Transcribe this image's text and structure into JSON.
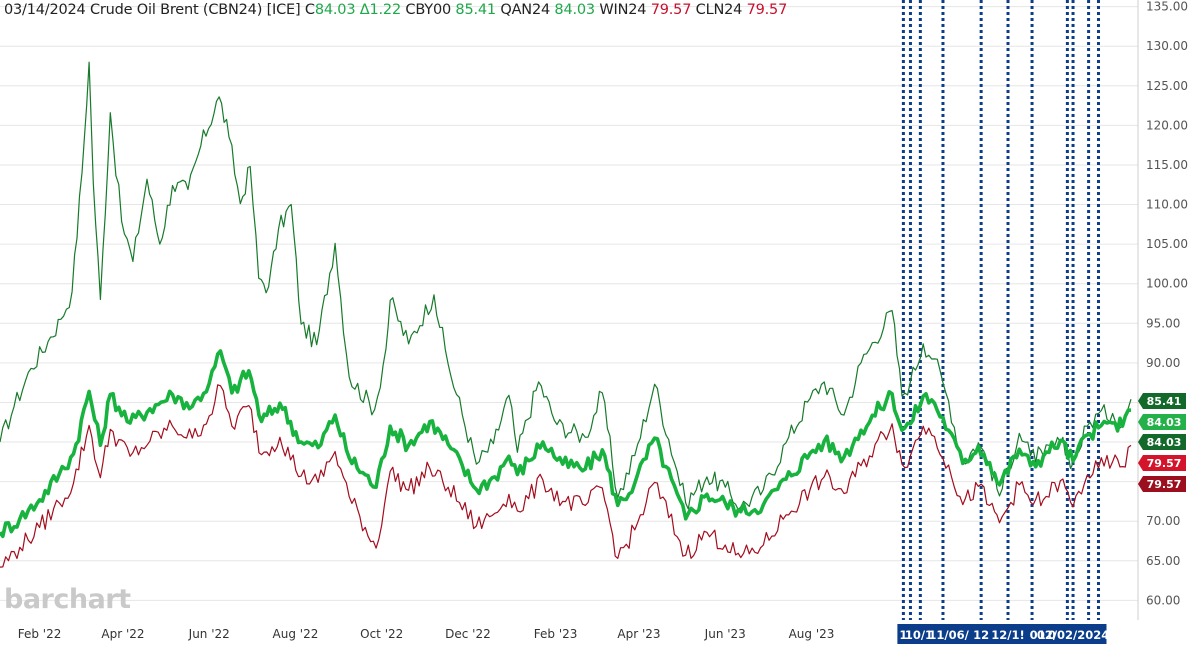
{
  "header": {
    "date": "03/14/2024",
    "name": "Crude Oil Brent (CBN24) [ICE]",
    "prefix": "C",
    "last": "84.03",
    "change": "Δ1.22",
    "items": [
      {
        "symbol": "CBY00",
        "value": "85.41",
        "tone": "pos"
      },
      {
        "symbol": "QAN24",
        "value": "84.03",
        "tone": "pos"
      },
      {
        "symbol": "WIN24",
        "value": "79.57",
        "tone": "neg"
      },
      {
        "symbol": "CLN24",
        "value": "79.57",
        "tone": "neg"
      }
    ]
  },
  "watermark": "barchart",
  "colors": {
    "thin_green": "#177a2b",
    "thick_green": "#18b23e",
    "red": "#a30d1d",
    "event_line": "#0b3d8a",
    "tag_lightgreen": "#24b14a",
    "tag_darkgreen": "#13692a",
    "tag_red": "#d3142b",
    "tag_darkred": "#9b0f1f",
    "grid": "#e6e6e6"
  },
  "chart_data": {
    "type": "line",
    "title": "",
    "xlabel": "",
    "ylabel": "",
    "ylim": [
      58,
      136
    ],
    "y_ticks": [
      "135.00",
      "130.00",
      "125.00",
      "120.00",
      "115.00",
      "110.00",
      "105.00",
      "100.00",
      "95.00",
      "90.00",
      "85.00",
      "80.00",
      "75.00",
      "70.00",
      "65.00",
      "60.00"
    ],
    "y_tick_values": [
      135,
      130,
      125,
      120,
      115,
      110,
      105,
      100,
      95,
      90,
      85,
      80,
      75,
      70,
      65,
      60
    ],
    "x_ticks": [
      "Feb '22",
      "Apr '22",
      "Jun '22",
      "Aug '22",
      "Oct '22",
      "Dec '22",
      "Feb '23",
      "Apr '23",
      "Jun '23",
      "Aug '23"
    ],
    "x_tick_dates": [
      "2022-02-01",
      "2022-04-01",
      "2022-06-01",
      "2022-08-01",
      "2022-10-01",
      "2022-12-01",
      "2023-02-01",
      "2023-04-01",
      "2023-06-01",
      "2023-08-01"
    ],
    "x_range": [
      "2022-01-04",
      "2024-03-14"
    ],
    "grid": "horizontal",
    "event_labels": [
      {
        "date": "2023-10-05",
        "text": "1"
      },
      {
        "date": "2023-10-16",
        "text": "10/1"
      },
      {
        "date": "2023-11-06",
        "text": "11/06/"
      },
      {
        "date": "2023-11-29",
        "text": "12"
      },
      {
        "date": "2023-12-18",
        "text": "12/1!"
      },
      {
        "date": "2024-01-08",
        "text": "01"
      },
      {
        "date": "2024-01-18",
        "text": "0"
      },
      {
        "date": "2024-02-02",
        "text": "02/02/2024"
      }
    ],
    "event_lines": [
      "2023-10-05",
      "2023-10-10",
      "2023-10-17",
      "2023-11-02",
      "2023-11-29",
      "2023-12-18",
      "2024-01-04",
      "2024-01-29",
      "2024-02-02",
      "2024-02-13",
      "2024-02-20"
    ],
    "price_tags": [
      {
        "value": 85.41,
        "label": "85.41",
        "color": "#13692a"
      },
      {
        "value": 84.03,
        "label": "84.03",
        "color": "#24b14a",
        "shift": 1
      },
      {
        "value": 84.03,
        "label": "84.03",
        "color": "#13692a",
        "shift": 2
      },
      {
        "value": 79.57,
        "label": "79.57",
        "color": "#d3142b",
        "shift": 3
      },
      {
        "value": 79.57,
        "label": "79.57",
        "color": "#9b0f1f",
        "shift": 4
      }
    ],
    "series": [
      {
        "name": "CBY00",
        "style": "thin",
        "color": "#177a2b",
        "points": [
          [
            "2022-01-04",
            80.0
          ],
          [
            "2022-01-14",
            84.5
          ],
          [
            "2022-01-26",
            89.3
          ],
          [
            "2022-02-07",
            92.7
          ],
          [
            "2022-02-16",
            95.5
          ],
          [
            "2022-02-24",
            99.0
          ],
          [
            "2022-03-03",
            114.0
          ],
          [
            "2022-03-08",
            127.98
          ],
          [
            "2022-03-11",
            112.7
          ],
          [
            "2022-03-16",
            98.0
          ],
          [
            "2022-03-23",
            121.6
          ],
          [
            "2022-03-31",
            107.9
          ],
          [
            "2022-04-08",
            102.8
          ],
          [
            "2022-04-18",
            113.2
          ],
          [
            "2022-04-27",
            105.0
          ],
          [
            "2022-05-06",
            112.4
          ],
          [
            "2022-05-17",
            111.9
          ],
          [
            "2022-05-26",
            117.4
          ],
          [
            "2022-06-08",
            123.6
          ],
          [
            "2022-06-15",
            118.5
          ],
          [
            "2022-06-23",
            110.1
          ],
          [
            "2022-06-30",
            114.8
          ],
          [
            "2022-07-06",
            100.7
          ],
          [
            "2022-07-13",
            99.6
          ],
          [
            "2022-07-20",
            106.9
          ],
          [
            "2022-07-29",
            110.0
          ],
          [
            "2022-08-05",
            94.9
          ],
          [
            "2022-08-16",
            92.3
          ],
          [
            "2022-08-29",
            105.1
          ],
          [
            "2022-09-08",
            88.2
          ],
          [
            "2022-09-26",
            84.1
          ],
          [
            "2022-10-04",
            91.8
          ],
          [
            "2022-10-07",
            97.9
          ],
          [
            "2022-10-20",
            92.4
          ],
          [
            "2022-11-07",
            98.6
          ],
          [
            "2022-11-17",
            89.8
          ],
          [
            "2022-12-07",
            77.2
          ],
          [
            "2022-12-19",
            79.8
          ],
          [
            "2022-12-30",
            85.9
          ],
          [
            "2023-01-05",
            78.7
          ],
          [
            "2023-01-20",
            87.6
          ],
          [
            "2023-02-02",
            82.2
          ],
          [
            "2023-02-22",
            80.6
          ],
          [
            "2023-03-06",
            86.2
          ],
          [
            "2023-03-17",
            72.97
          ],
          [
            "2023-03-29",
            78.3
          ],
          [
            "2023-04-12",
            87.3
          ],
          [
            "2023-05-04",
            72.3
          ],
          [
            "2023-05-19",
            75.6
          ],
          [
            "2023-06-01",
            74.3
          ],
          [
            "2023-06-12",
            71.8
          ],
          [
            "2023-06-28",
            74.0
          ],
          [
            "2023-07-14",
            79.9
          ],
          [
            "2023-07-31",
            85.5
          ],
          [
            "2023-08-10",
            87.6
          ],
          [
            "2023-08-24",
            83.4
          ],
          [
            "2023-09-05",
            90.0
          ],
          [
            "2023-09-27",
            96.6
          ],
          [
            "2023-10-04",
            85.8
          ],
          [
            "2023-10-10",
            87.7
          ],
          [
            "2023-10-19",
            92.4
          ],
          [
            "2023-10-27",
            90.5
          ],
          [
            "2023-11-06",
            85.2
          ],
          [
            "2023-11-16",
            77.4
          ],
          [
            "2023-11-27",
            79.9
          ],
          [
            "2023-12-05",
            77.2
          ],
          [
            "2023-12-12",
            73.2
          ],
          [
            "2023-12-26",
            81.1
          ],
          [
            "2024-01-03",
            78.3
          ],
          [
            "2024-01-12",
            78.3
          ],
          [
            "2024-01-24",
            80.0
          ],
          [
            "2024-02-02",
            77.3
          ],
          [
            "2024-02-12",
            82.0
          ],
          [
            "2024-02-20",
            83.6
          ],
          [
            "2024-03-01",
            83.6
          ],
          [
            "2024-03-08",
            82.1
          ],
          [
            "2024-03-14",
            85.41
          ]
        ]
      },
      {
        "name": "QAN24",
        "style": "thick",
        "color": "#18b23e",
        "points": [
          [
            "2022-01-04",
            68.6
          ],
          [
            "2022-01-18",
            70.3
          ],
          [
            "2022-02-01",
            72.7
          ],
          [
            "2022-02-15",
            76.0
          ],
          [
            "2022-02-25",
            78.5
          ],
          [
            "2022-03-08",
            86.4
          ],
          [
            "2022-03-16",
            79.6
          ],
          [
            "2022-03-23",
            86.0
          ],
          [
            "2022-04-06",
            82.4
          ],
          [
            "2022-04-20",
            84.2
          ],
          [
            "2022-05-06",
            86.0
          ],
          [
            "2022-05-20",
            84.5
          ],
          [
            "2022-06-01",
            87.4
          ],
          [
            "2022-06-09",
            91.5
          ],
          [
            "2022-06-17",
            86.2
          ],
          [
            "2022-06-29",
            89.0
          ],
          [
            "2022-07-08",
            82.6
          ],
          [
            "2022-07-21",
            84.9
          ],
          [
            "2022-08-05",
            80.0
          ],
          [
            "2022-08-17",
            79.3
          ],
          [
            "2022-08-29",
            83.4
          ],
          [
            "2022-09-08",
            78.0
          ],
          [
            "2022-09-27",
            74.3
          ],
          [
            "2022-10-07",
            82.0
          ],
          [
            "2022-10-20",
            79.6
          ],
          [
            "2022-11-04",
            82.6
          ],
          [
            "2022-11-17",
            79.7
          ],
          [
            "2022-12-07",
            74.0
          ],
          [
            "2022-12-20",
            75.6
          ],
          [
            "2022-12-30",
            78.2
          ],
          [
            "2023-01-05",
            75.9
          ],
          [
            "2023-01-23",
            80.0
          ],
          [
            "2023-02-06",
            77.2
          ],
          [
            "2023-02-22",
            76.6
          ],
          [
            "2023-03-06",
            79.0
          ],
          [
            "2023-03-17",
            72.0
          ],
          [
            "2023-03-29",
            74.8
          ],
          [
            "2023-04-12",
            80.5
          ],
          [
            "2023-05-04",
            70.3
          ],
          [
            "2023-05-19",
            73.4
          ],
          [
            "2023-06-01",
            72.3
          ],
          [
            "2023-06-12",
            71.2
          ],
          [
            "2023-06-28",
            72.1
          ],
          [
            "2023-07-14",
            75.3
          ],
          [
            "2023-07-31",
            78.6
          ],
          [
            "2023-08-10",
            80.1
          ],
          [
            "2023-08-24",
            78.1
          ],
          [
            "2023-09-05",
            81.5
          ],
          [
            "2023-09-27",
            86.1
          ],
          [
            "2023-10-04",
            81.5
          ],
          [
            "2023-10-10",
            82.3
          ],
          [
            "2023-10-19",
            85.8
          ],
          [
            "2023-10-27",
            84.9
          ],
          [
            "2023-11-06",
            81.5
          ],
          [
            "2023-11-16",
            77.3
          ],
          [
            "2023-11-27",
            79.5
          ],
          [
            "2023-12-05",
            77.4
          ],
          [
            "2023-12-12",
            74.6
          ],
          [
            "2023-12-26",
            79.1
          ],
          [
            "2024-01-03",
            77.0
          ],
          [
            "2024-01-12",
            78.2
          ],
          [
            "2024-01-24",
            80.2
          ],
          [
            "2024-02-02",
            77.6
          ],
          [
            "2024-02-12",
            80.9
          ],
          [
            "2024-02-20",
            81.8
          ],
          [
            "2024-03-01",
            82.4
          ],
          [
            "2024-03-08",
            82.0
          ],
          [
            "2024-03-14",
            84.03
          ]
        ]
      },
      {
        "name": "WIN24",
        "style": "thin",
        "color": "#a30d1d",
        "points": [
          [
            "2022-01-04",
            64.2
          ],
          [
            "2022-01-18",
            66.7
          ],
          [
            "2022-02-01",
            69.2
          ],
          [
            "2022-02-15",
            72.3
          ],
          [
            "2022-02-25",
            74.8
          ],
          [
            "2022-03-08",
            82.1
          ],
          [
            "2022-03-16",
            75.5
          ],
          [
            "2022-03-23",
            81.6
          ],
          [
            "2022-04-06",
            78.2
          ],
          [
            "2022-04-20",
            80.1
          ],
          [
            "2022-05-06",
            82.0
          ],
          [
            "2022-05-20",
            80.5
          ],
          [
            "2022-06-01",
            83.3
          ],
          [
            "2022-06-09",
            87.1
          ],
          [
            "2022-06-17",
            82.0
          ],
          [
            "2022-06-29",
            84.6
          ],
          [
            "2022-07-08",
            78.4
          ],
          [
            "2022-07-21",
            80.6
          ],
          [
            "2022-08-05",
            75.7
          ],
          [
            "2022-08-17",
            74.9
          ],
          [
            "2022-08-29",
            78.8
          ],
          [
            "2022-09-08",
            73.1
          ],
          [
            "2022-09-27",
            66.6
          ],
          [
            "2022-10-07",
            76.3
          ],
          [
            "2022-10-20",
            73.9
          ],
          [
            "2022-11-04",
            76.7
          ],
          [
            "2022-11-17",
            74.3
          ],
          [
            "2022-12-07",
            69.4
          ],
          [
            "2022-12-20",
            71.0
          ],
          [
            "2022-12-30",
            73.4
          ],
          [
            "2023-01-05",
            71.3
          ],
          [
            "2023-01-23",
            75.2
          ],
          [
            "2023-02-06",
            72.5
          ],
          [
            "2023-02-22",
            72.0
          ],
          [
            "2023-03-06",
            74.2
          ],
          [
            "2023-03-17",
            65.3
          ],
          [
            "2023-03-29",
            68.9
          ],
          [
            "2023-04-12",
            74.9
          ],
          [
            "2023-05-04",
            65.7
          ],
          [
            "2023-05-19",
            68.6
          ],
          [
            "2023-06-01",
            67.0
          ],
          [
            "2023-06-12",
            65.4
          ],
          [
            "2023-06-28",
            67.0
          ],
          [
            "2023-07-14",
            70.8
          ],
          [
            "2023-07-31",
            74.0
          ],
          [
            "2023-08-10",
            75.6
          ],
          [
            "2023-08-24",
            73.5
          ],
          [
            "2023-09-05",
            77.0
          ],
          [
            "2023-09-27",
            82.3
          ],
          [
            "2023-10-04",
            77.2
          ],
          [
            "2023-10-10",
            78.3
          ],
          [
            "2023-10-19",
            82.0
          ],
          [
            "2023-10-27",
            80.7
          ],
          [
            "2023-11-06",
            77.1
          ],
          [
            "2023-11-16",
            72.1
          ],
          [
            "2023-11-27",
            74.4
          ],
          [
            "2023-12-05",
            72.0
          ],
          [
            "2023-12-12",
            69.8
          ],
          [
            "2023-12-26",
            74.6
          ],
          [
            "2024-01-03",
            72.4
          ],
          [
            "2024-01-12",
            72.7
          ],
          [
            "2024-01-24",
            75.1
          ],
          [
            "2024-02-02",
            71.8
          ],
          [
            "2024-02-12",
            75.8
          ],
          [
            "2024-02-20",
            76.7
          ],
          [
            "2024-03-01",
            77.5
          ],
          [
            "2024-03-08",
            76.9
          ],
          [
            "2024-03-14",
            79.57
          ]
        ]
      }
    ]
  }
}
